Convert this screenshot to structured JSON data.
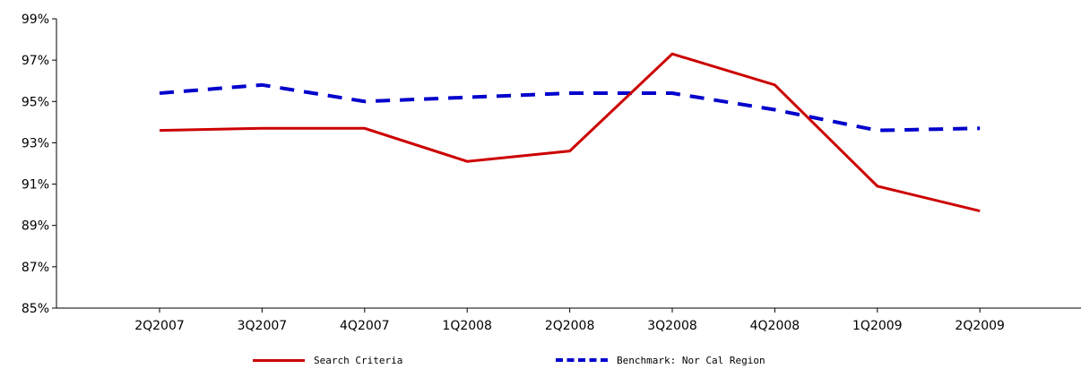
{
  "chart_data": {
    "type": "line",
    "categories": [
      "2Q2007",
      "3Q2007",
      "4Q2007",
      "1Q2008",
      "2Q2008",
      "3Q2008",
      "4Q2008",
      "1Q2009",
      "2Q2009"
    ],
    "series": [
      {
        "name": "Search Criteria",
        "values": [
          93.6,
          93.7,
          93.7,
          92.1,
          92.6,
          97.3,
          95.8,
          90.9,
          89.7
        ],
        "color": "#cc0000",
        "style": "solid"
      },
      {
        "name": "Benchmark: Nor Cal Region",
        "values": [
          95.4,
          95.8,
          95.0,
          95.2,
          95.4,
          95.4,
          94.6,
          93.6,
          93.7
        ],
        "color": "#0000cc",
        "style": "dashed"
      }
    ],
    "y_ticks": [
      "99%",
      "97%",
      "95%",
      "93%",
      "91%",
      "89%",
      "87%",
      "85%"
    ],
    "y_tick_values": [
      99,
      97,
      95,
      93,
      91,
      89,
      87,
      85
    ],
    "ylim": [
      85,
      99
    ],
    "xlabel": "",
    "ylabel": "",
    "grid": false,
    "legend_position": "bottom"
  }
}
